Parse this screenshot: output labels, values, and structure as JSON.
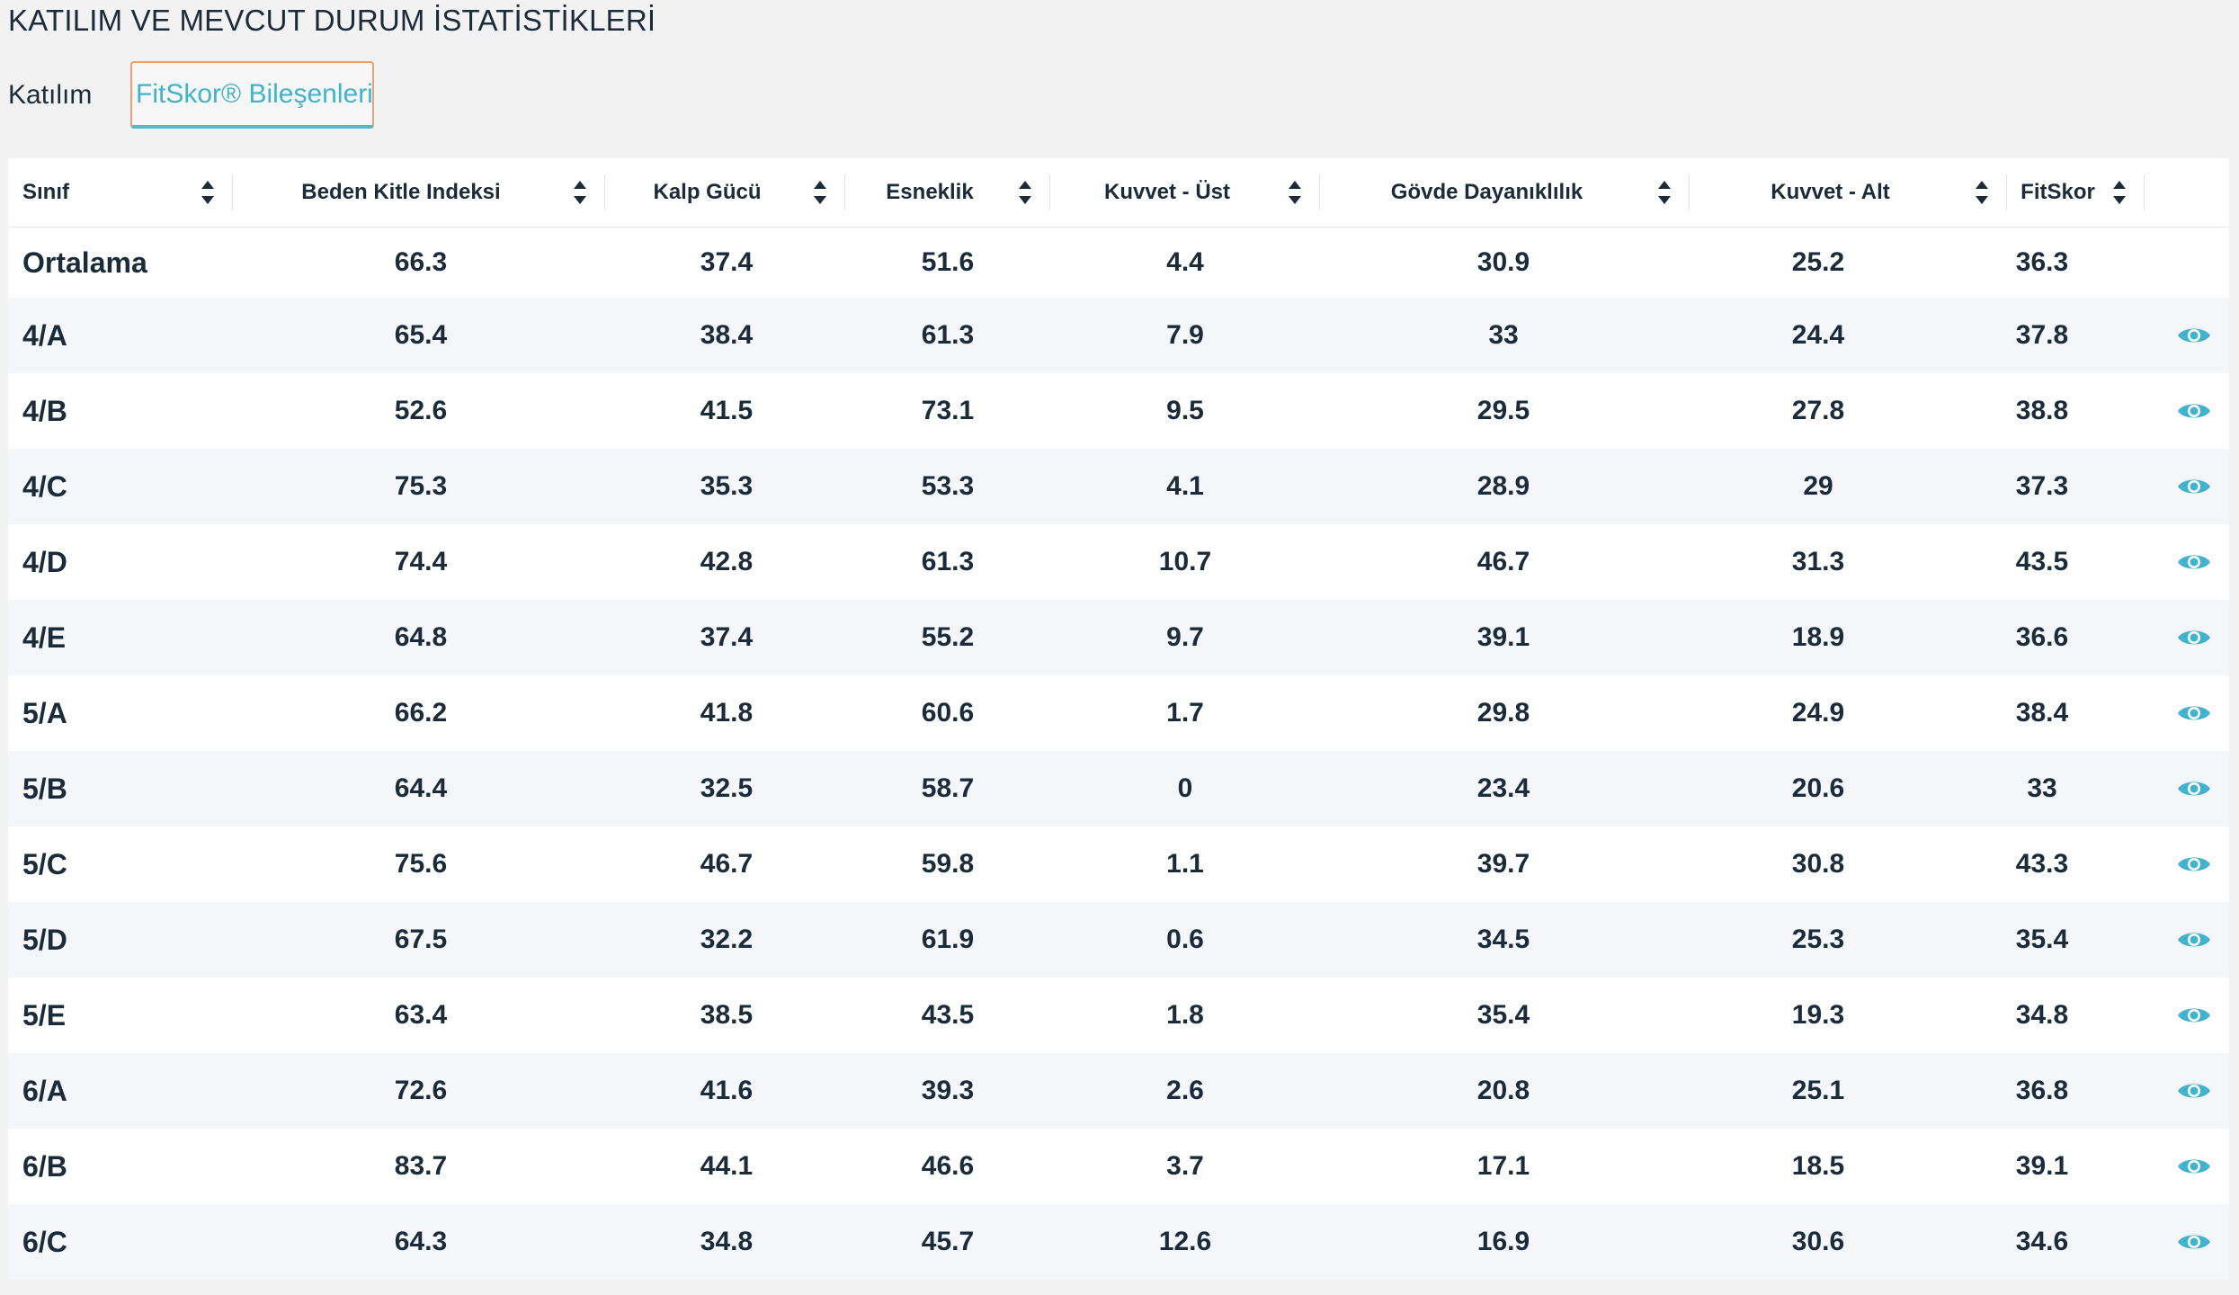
{
  "page": {
    "title": "KATILIM VE MEVCUT DURUM İSTATİSTİKLERİ"
  },
  "tabs": [
    {
      "label": "Katılım",
      "active": false
    },
    {
      "label": "FitSkor® Bileşenleri",
      "active": true
    }
  ],
  "colors": {
    "accent": "#42b3cc",
    "tab_border": "#e8a16f",
    "text": "#1c2b3a",
    "stripe": "#f4f6f9"
  },
  "icons": {
    "sort": "sort-updown-icon",
    "view": "eye-icon"
  },
  "table": {
    "columns": [
      "Sınıf",
      "Beden Kitle Indeksi",
      "Kalp Gücü",
      "Esneklik",
      "Kuvvet - Üst",
      "Gövde Dayanıklılık",
      "Kuvvet - Alt",
      "FitSkor"
    ],
    "average": {
      "label": "Ortalama",
      "values": [
        "66.3",
        "37.4",
        "51.6",
        "4.4",
        "30.9",
        "25.2",
        "36.3"
      ]
    },
    "rows": [
      {
        "name": "4/A",
        "values": [
          "65.4",
          "38.4",
          "61.3",
          "7.9",
          "33",
          "24.4",
          "37.8"
        ]
      },
      {
        "name": "4/B",
        "values": [
          "52.6",
          "41.5",
          "73.1",
          "9.5",
          "29.5",
          "27.8",
          "38.8"
        ]
      },
      {
        "name": "4/C",
        "values": [
          "75.3",
          "35.3",
          "53.3",
          "4.1",
          "28.9",
          "29",
          "37.3"
        ]
      },
      {
        "name": "4/D",
        "values": [
          "74.4",
          "42.8",
          "61.3",
          "10.7",
          "46.7",
          "31.3",
          "43.5"
        ]
      },
      {
        "name": "4/E",
        "values": [
          "64.8",
          "37.4",
          "55.2",
          "9.7",
          "39.1",
          "18.9",
          "36.6"
        ]
      },
      {
        "name": "5/A",
        "values": [
          "66.2",
          "41.8",
          "60.6",
          "1.7",
          "29.8",
          "24.9",
          "38.4"
        ]
      },
      {
        "name": "5/B",
        "values": [
          "64.4",
          "32.5",
          "58.7",
          "0",
          "23.4",
          "20.6",
          "33"
        ]
      },
      {
        "name": "5/C",
        "values": [
          "75.6",
          "46.7",
          "59.8",
          "1.1",
          "39.7",
          "30.8",
          "43.3"
        ]
      },
      {
        "name": "5/D",
        "values": [
          "67.5",
          "32.2",
          "61.9",
          "0.6",
          "34.5",
          "25.3",
          "35.4"
        ]
      },
      {
        "name": "5/E",
        "values": [
          "63.4",
          "38.5",
          "43.5",
          "1.8",
          "35.4",
          "19.3",
          "34.8"
        ]
      },
      {
        "name": "6/A",
        "values": [
          "72.6",
          "41.6",
          "39.3",
          "2.6",
          "20.8",
          "25.1",
          "36.8"
        ]
      },
      {
        "name": "6/B",
        "values": [
          "83.7",
          "44.1",
          "46.6",
          "3.7",
          "17.1",
          "18.5",
          "39.1"
        ]
      },
      {
        "name": "6/C",
        "values": [
          "64.3",
          "34.8",
          "45.7",
          "12.6",
          "16.9",
          "30.6",
          "34.6"
        ]
      }
    ]
  }
}
